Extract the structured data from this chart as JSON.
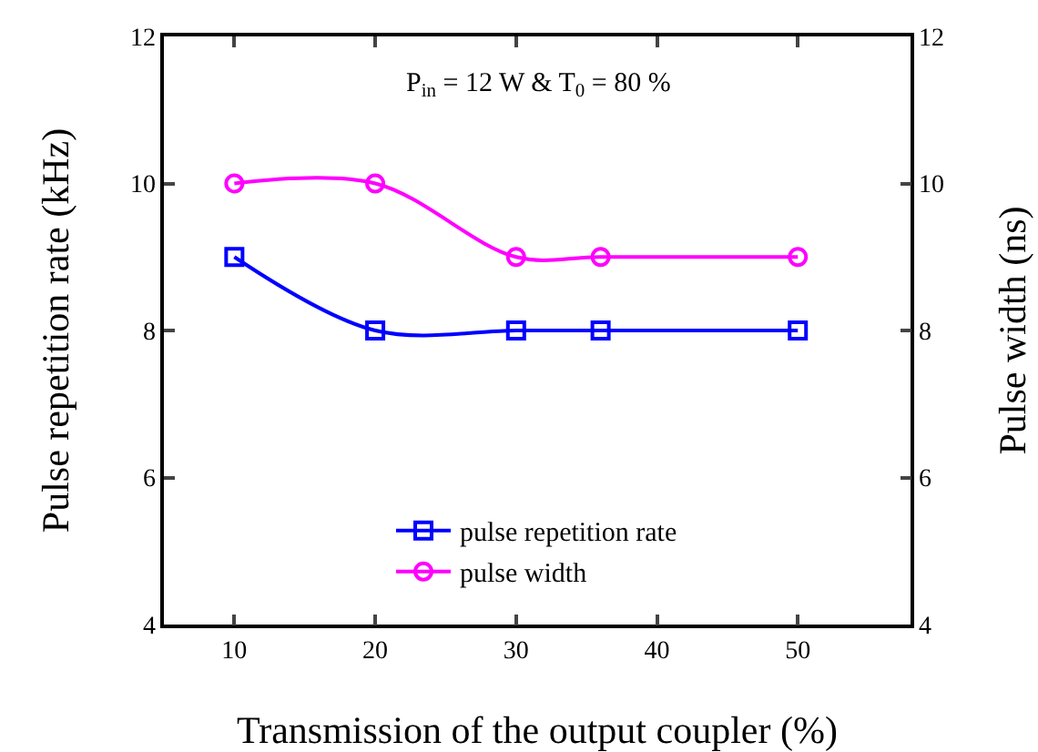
{
  "chart_data": {
    "type": "line",
    "xlabel": "Transmission of the output coupler (%)",
    "ylabel": "Pulse repetition rate (kHz)",
    "y2label": "Pulse width (ns)",
    "annotations": [
      "P$_{in}$ = 12 W & T$_{0}$ = 80 %"
    ],
    "x": [
      10,
      20,
      30,
      36,
      50
    ],
    "series": [
      {
        "name": "pulse repetition rate",
        "color": "#0000ff",
        "values": [
          9,
          8,
          8,
          8,
          8
        ],
        "marker": "square"
      },
      {
        "name": "pulse width",
        "color": "#ff00ff",
        "values": [
          10,
          10,
          9,
          9,
          9
        ],
        "marker": "circle",
        "axis": "y2"
      }
    ],
    "xlim": [
      5,
      58
    ],
    "xticks": [
      10,
      20,
      30,
      40,
      50
    ],
    "ylim": [
      4,
      12
    ],
    "yticks": [
      4,
      6,
      8,
      10,
      12
    ],
    "y2lim": [
      4,
      12
    ],
    "y2ticks": [
      4,
      6,
      8,
      10,
      12
    ],
    "grid": false,
    "legend": "bottom",
    "line_style": "solid"
  }
}
